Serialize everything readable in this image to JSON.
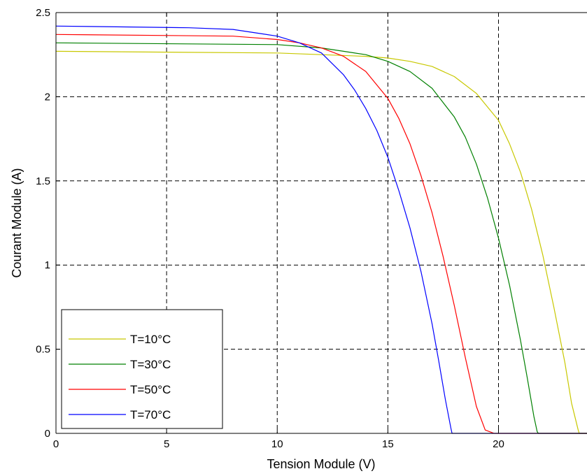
{
  "chart_data": {
    "type": "line",
    "xlabel": "Tension Module (V)",
    "ylabel": "Courant Module (A)",
    "xlim": [
      0,
      24
    ],
    "ylim": [
      0,
      2.5
    ],
    "xticks": [
      0,
      5,
      10,
      15,
      20
    ],
    "yticks": [
      0,
      0.5,
      1,
      1.5,
      2,
      2.5
    ],
    "xtick_labels": [
      "0",
      "5",
      "10",
      "15",
      "20"
    ],
    "ytick_labels": [
      "0",
      "0.5",
      "1",
      "1.5",
      "2",
      "2.5"
    ],
    "grid": true,
    "legend_position": "bottom-left",
    "series": [
      {
        "name": "T=10°C",
        "color": "#c8c800",
        "x": [
          0,
          10,
          12,
          14,
          15,
          16,
          17,
          18,
          19,
          20,
          20.5,
          21,
          21.5,
          22,
          22.5,
          23,
          23.3,
          23.6,
          23.65,
          24
        ],
        "y": [
          2.27,
          2.26,
          2.25,
          2.24,
          2.23,
          2.21,
          2.18,
          2.12,
          2.02,
          1.86,
          1.72,
          1.55,
          1.33,
          1.06,
          0.75,
          0.42,
          0.18,
          0.02,
          0,
          0
        ]
      },
      {
        "name": "T=30°C",
        "color": "#008000",
        "x": [
          0,
          10,
          12,
          13,
          14,
          15,
          16,
          17,
          18,
          18.5,
          19,
          19.5,
          20,
          20.5,
          21,
          21.3,
          21.6,
          21.75,
          21.8,
          24
        ],
        "y": [
          2.32,
          2.31,
          2.29,
          2.27,
          2.25,
          2.21,
          2.15,
          2.05,
          1.88,
          1.76,
          1.6,
          1.4,
          1.16,
          0.88,
          0.55,
          0.33,
          0.1,
          0.01,
          0,
          2.4e-08
        ]
      },
      {
        "name": "T=50°C",
        "color": "#ff0000",
        "x": [
          0,
          8,
          10,
          11,
          12,
          13,
          14,
          15,
          15.5,
          16,
          16.5,
          17,
          17.5,
          18,
          18.5,
          19,
          19.4,
          19.7,
          19.8,
          24
        ],
        "y": [
          2.37,
          2.36,
          2.34,
          2.32,
          2.29,
          2.24,
          2.15,
          1.99,
          1.87,
          1.72,
          1.53,
          1.31,
          1.05,
          0.76,
          0.45,
          0.16,
          0.02,
          0.005,
          0,
          0
        ]
      },
      {
        "name": "T=70°C",
        "color": "#0000ff",
        "x": [
          0,
          6,
          8,
          9,
          10,
          11,
          12,
          13,
          13.5,
          14,
          14.5,
          15,
          15.5,
          16,
          16.5,
          17,
          17.3,
          17.6,
          17.85,
          17.9,
          24
        ],
        "y": [
          2.42,
          2.41,
          2.4,
          2.38,
          2.36,
          2.32,
          2.26,
          2.13,
          2.04,
          1.93,
          1.8,
          1.64,
          1.44,
          1.22,
          0.96,
          0.65,
          0.43,
          0.2,
          0.03,
          0,
          0
        ]
      }
    ]
  }
}
